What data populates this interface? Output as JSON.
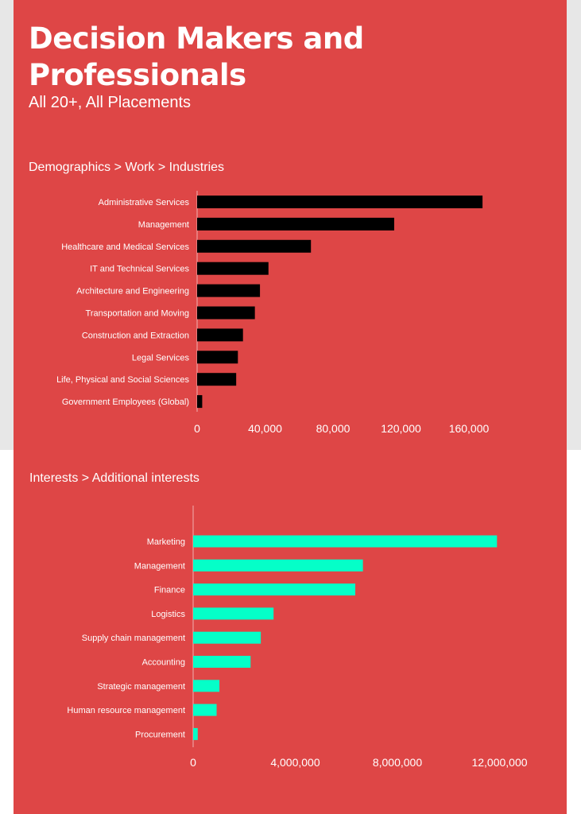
{
  "header": {
    "title": "Decision Makers and Professionals",
    "subtitle": "All 20+, All Placements"
  },
  "colors": {
    "background": "#de4646",
    "bar_industries": "#000000",
    "bar_interests": "#05ffc8",
    "text": "#ffffff"
  },
  "chart_data": [
    {
      "type": "bar",
      "orientation": "horizontal",
      "title": "Demographics > Work > Industries",
      "categories": [
        "Administrative Services",
        "Management",
        "Healthcare and Medical Services",
        "IT and Technical Services",
        "Architecture and Engineering",
        "Transportation and Moving",
        "Construction and Extraction",
        "Legal Services",
        "Life, Physical and Social Sciences",
        "Government Employees (Global)"
      ],
      "values": [
        168000,
        116000,
        67000,
        42000,
        37000,
        34000,
        27000,
        24000,
        23000,
        3000
      ],
      "xlim": [
        0,
        180000
      ],
      "xticks": [
        0,
        40000,
        80000,
        120000,
        160000
      ],
      "xtick_labels": [
        "0",
        "40,000",
        "80,000",
        "120,000",
        "160,000"
      ],
      "grid": false
    },
    {
      "type": "bar",
      "orientation": "horizontal",
      "title": "Interests > Additional interests",
      "categories": [
        "Marketing",
        "Management",
        "Finance",
        "Logistics",
        "Supply chain management",
        "Accounting",
        "Strategic management",
        "Human resource management",
        "Procurement"
      ],
      "values": [
        11900000,
        6650000,
        6350000,
        3150000,
        2650000,
        2250000,
        1030000,
        920000,
        180000
      ],
      "xlim": [
        0,
        12500000
      ],
      "xticks": [
        0,
        4000000,
        8000000,
        12000000
      ],
      "xtick_labels": [
        "0",
        "4,000,000",
        "8,000,000",
        "12,000,000"
      ],
      "grid": false
    }
  ]
}
